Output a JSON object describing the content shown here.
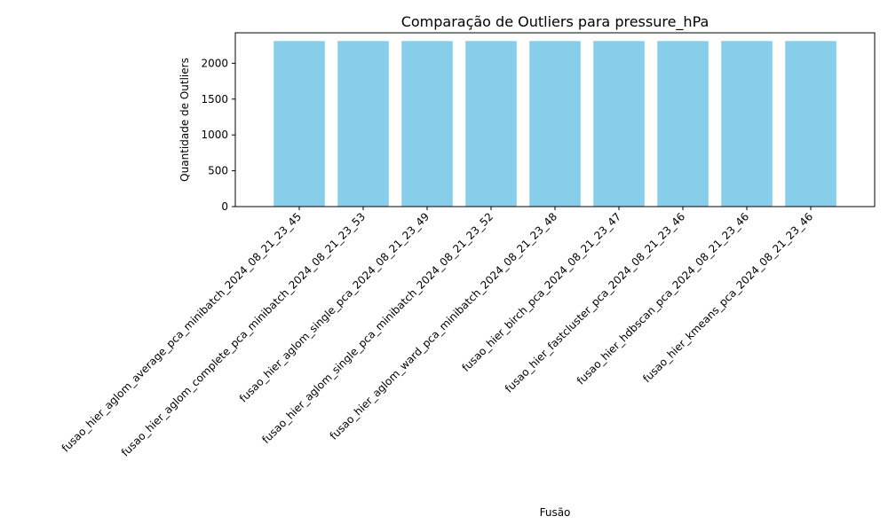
{
  "chart_data": {
    "type": "bar",
    "title": "Comparação de Outliers para pressure_hPa",
    "xlabel": "Fusão",
    "ylabel": "Quantidade de Outliers",
    "categories": [
      "fusao_hier_aglom_average_pca_minibatch_2024_08_21_23_45",
      "fusao_hier_aglom_complete_pca_minibatch_2024_08_21_23_53",
      "fusao_hier_aglom_single_pca_2024_08_21_23_49",
      "fusao_hier_aglom_single_pca_minibatch_2024_08_21_23_52",
      "fusao_hier_aglom_ward_pca_minibatch_2024_08_21_23_48",
      "fusao_hier_birch_pca_2024_08_21_23_47",
      "fusao_hier_fastcluster_pca_2024_08_21_23_46",
      "fusao_hier_hdbscan_pca_2024_08_21_23_46",
      "fusao_hier_kmeans_pca_2024_08_21_23_46"
    ],
    "values": [
      2310,
      2310,
      2310,
      2310,
      2310,
      2310,
      2310,
      2310,
      2310
    ],
    "ylim": [
      0,
      2425
    ],
    "yticks": [
      0,
      500,
      1000,
      1500,
      2000
    ],
    "bar_color": "#87ceeb",
    "grid": false,
    "legend": "none"
  }
}
